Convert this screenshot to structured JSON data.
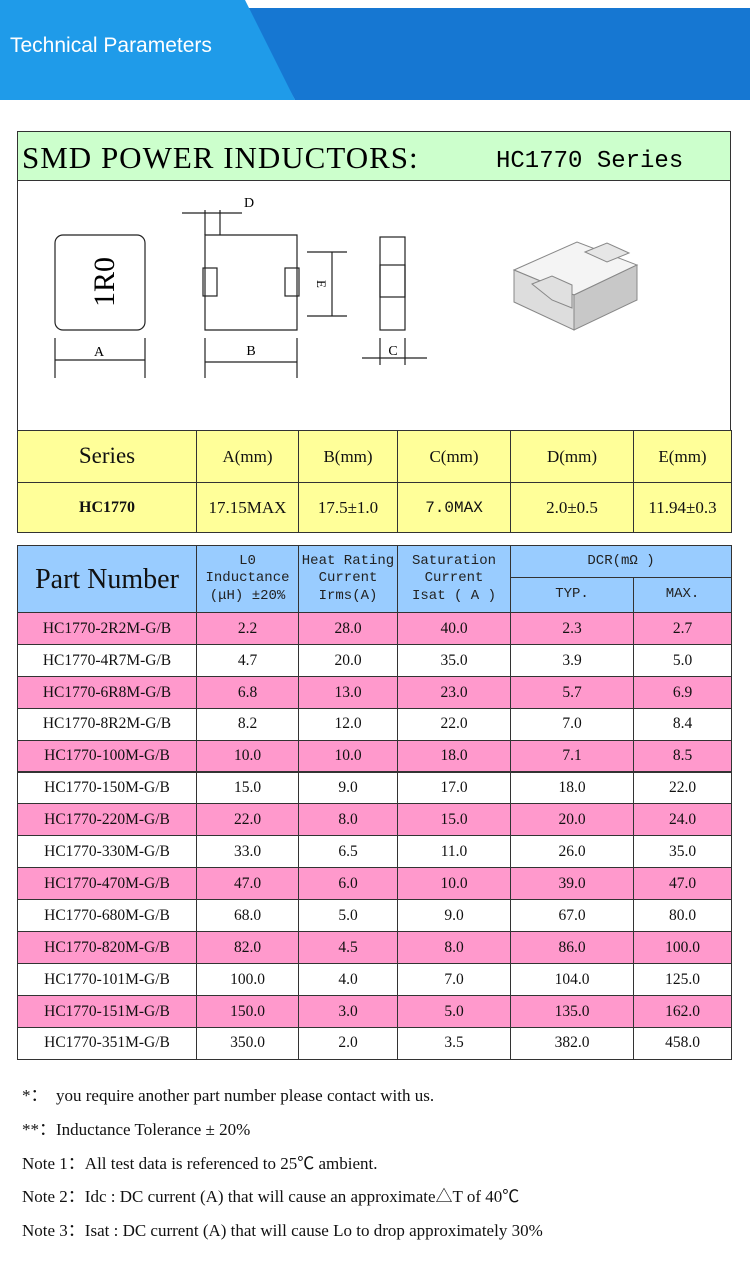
{
  "header": {
    "title": "Technical Parameters"
  },
  "product": {
    "title": "SMD POWER INDUCTORS:",
    "series_label": "HC1770 Series"
  },
  "drawing": {
    "marking": "1R0",
    "labels": {
      "a": "A",
      "b": "B",
      "c": "C",
      "d": "D",
      "e": "E"
    }
  },
  "dimensions": {
    "headers": [
      "Series",
      "A(mm)",
      "B(mm)",
      "C(mm)",
      "D(mm)",
      "E(mm)"
    ],
    "row": [
      "HC1770",
      "17.15MAX",
      "17.5±1.0",
      "7.0MAX",
      "2.0±0.5",
      "11.94±0.3"
    ]
  },
  "table": {
    "headers": {
      "part_number": "Part Number",
      "inductance": [
        "L0",
        "Inductance",
        "(μH) ±20%"
      ],
      "heat_rating": [
        "Heat Rating",
        "Current",
        "Irms(A)"
      ],
      "saturation": [
        "Saturation",
        "Current",
        "Isat ( A )"
      ],
      "dcr": "DCR(mΩ )",
      "typ": "TYP.",
      "max": "MAX."
    },
    "rows": [
      [
        "HC1770-2R2M-G/B",
        "2.2",
        "28.0",
        "40.0",
        "2.3",
        "2.7"
      ],
      [
        "HC1770-4R7M-G/B",
        "4.7",
        "20.0",
        "35.0",
        "3.9",
        "5.0"
      ],
      [
        "HC1770-6R8M-G/B",
        "6.8",
        "13.0",
        "23.0",
        "5.7",
        "6.9"
      ],
      [
        "HC1770-8R2M-G/B",
        "8.2",
        "12.0",
        "22.0",
        "7.0",
        "8.4"
      ],
      [
        "HC1770-100M-G/B",
        "10.0",
        "10.0",
        "18.0",
        "7.1",
        "8.5"
      ],
      [
        "HC1770-150M-G/B",
        "15.0",
        "9.0",
        "17.0",
        "18.0",
        "22.0"
      ],
      [
        "HC1770-220M-G/B",
        "22.0",
        "8.0",
        "15.0",
        "20.0",
        "24.0"
      ],
      [
        "HC1770-330M-G/B",
        "33.0",
        "6.5",
        "11.0",
        "26.0",
        "35.0"
      ],
      [
        "HC1770-470M-G/B",
        "47.0",
        "6.0",
        "10.0",
        "39.0",
        "47.0"
      ],
      [
        "HC1770-680M-G/B",
        "68.0",
        "5.0",
        "9.0",
        "67.0",
        "80.0"
      ],
      [
        "HC1770-820M-G/B",
        "82.0",
        "4.5",
        "8.0",
        "86.0",
        "100.0"
      ],
      [
        "HC1770-101M-G/B",
        "100.0",
        "4.0",
        "7.0",
        "104.0",
        "125.0"
      ],
      [
        "HC1770-151M-G/B",
        "150.0",
        "3.0",
        "5.0",
        "135.0",
        "162.0"
      ],
      [
        "HC1770-351M-G/B",
        "350.0",
        "2.0",
        "3.5",
        "382.0",
        "458.0"
      ]
    ]
  },
  "notes": [
    "*：  you require another part number please contact with us.",
    "**：Inductance Tolerance ± 20%",
    "Note 1：All test data is referenced to 25℃ ambient.",
    "Note 2：Idc : DC current (A) that will cause an approximate△T of 40℃",
    "Note 3：Isat : DC current (A) that will cause Lo to drop approximately 30%"
  ]
}
